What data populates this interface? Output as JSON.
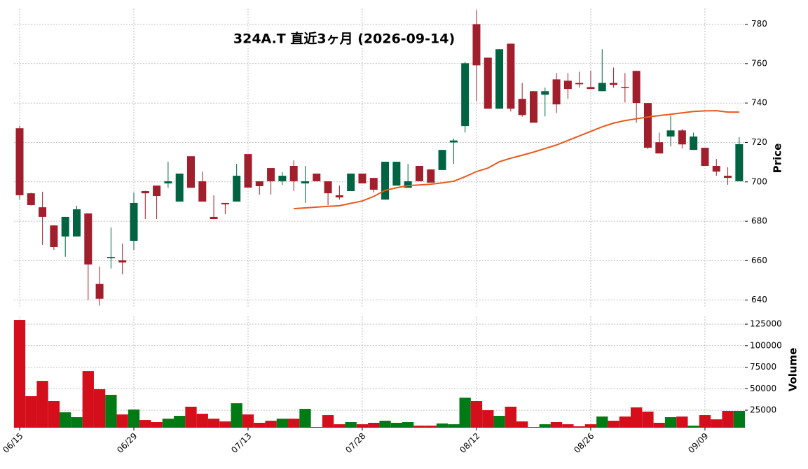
{
  "chart_data": {
    "type": "candlestick",
    "title": "324A.T  直近3ヶ月  (2026-09-14)",
    "categories": [
      "06/15",
      null,
      null,
      null,
      null,
      null,
      null,
      null,
      null,
      null,
      "06/29",
      null,
      null,
      null,
      null,
      null,
      null,
      null,
      null,
      null,
      "07/13",
      null,
      null,
      null,
      null,
      null,
      null,
      null,
      null,
      null,
      "07/28",
      null,
      null,
      null,
      null,
      null,
      null,
      null,
      null,
      null,
      "08/12",
      null,
      null,
      null,
      null,
      null,
      null,
      null,
      null,
      null,
      "08/26",
      null,
      null,
      null,
      null,
      null,
      null,
      null,
      null,
      null,
      "09/09",
      null,
      null,
      null
    ],
    "open": [
      727.2,
      694.2,
      687.1,
      677.9,
      672.3,
      672.3,
      684,
      648.2,
      661.3,
      660.2,
      670.1,
      695.3,
      698.1,
      699.2,
      690,
      713,
      700.3,
      682.2,
      689.3,
      690,
      714.1,
      700.3,
      707,
      700.3,
      708.1,
      699.2,
      704.2,
      700.3,
      693.2,
      695.3,
      704.2,
      702,
      691,
      698.1,
      697,
      708.1,
      706.3,
      706,
      720,
      728.3,
      780,
      763,
      737.1,
      770.1,
      742.1,
      746,
      744.2,
      752,
      751.3,
      750.2,
      748.1,
      746,
      750.2,
      748.1,
      756.3,
      740,
      720.1,
      723,
      726.1,
      716.2,
      717.3,
      708.1,
      703.1,
      700.3
    ],
    "high": [
      728.5,
      694.5,
      695,
      678,
      682.2,
      687.9,
      684,
      657,
      676.9,
      668.7,
      694.6,
      695.5,
      698.1,
      710.2,
      704.2,
      713,
      705.2,
      693.2,
      689.3,
      709.1,
      714.1,
      700.3,
      707,
      704.9,
      710.9,
      708.1,
      704.2,
      700.3,
      698.1,
      704.2,
      704.2,
      702,
      710.2,
      710.2,
      709.1,
      708.1,
      706.3,
      716.2,
      722,
      760.9,
      787.1,
      763,
      767.3,
      770.1,
      750.2,
      746,
      747.8,
      755.2,
      755.2,
      755.9,
      756.3,
      767.3,
      758,
      755.2,
      756.3,
      740,
      725,
      733.6,
      726.9,
      725,
      717.3,
      711.6,
      707.4,
      722.6
    ],
    "low": [
      691,
      688,
      668,
      665.5,
      662,
      672.3,
      640,
      637.2,
      656,
      653.1,
      665.5,
      681.1,
      681.1,
      697,
      690,
      697,
      690,
      681,
      683.6,
      690,
      697.1,
      693.5,
      693.5,
      698.5,
      695.3,
      689.3,
      700.3,
      688.2,
      691,
      695.3,
      699.2,
      694.6,
      691,
      698.1,
      697,
      700.3,
      699.6,
      706,
      709.1,
      725,
      741,
      737.1,
      737.1,
      735.7,
      733,
      730,
      733.2,
      735,
      742.1,
      747.8,
      747.1,
      746,
      747.8,
      740.3,
      730,
      716.6,
      714.4,
      718,
      716.9,
      716.2,
      708.1,
      703.1,
      698.5,
      700.3
    ],
    "close": [
      693.2,
      688.2,
      682.2,
      666.9,
      682.2,
      686.1,
      658.1,
      640.7,
      661.9,
      659.1,
      689.3,
      694.2,
      692.8,
      700.3,
      704.2,
      697,
      690,
      681.1,
      688.6,
      703.1,
      697.1,
      697.8,
      700.3,
      703.1,
      700.3,
      700.3,
      700.3,
      694.2,
      692.1,
      704.2,
      699.2,
      696,
      710.2,
      710.2,
      700.3,
      700.3,
      699.6,
      716.2,
      721,
      760.2,
      759.1,
      737.1,
      767.3,
      737.1,
      733.9,
      730,
      746,
      739.3,
      747.1,
      749.5,
      747.1,
      750.2,
      749.2,
      747.8,
      740,
      717.3,
      714.4,
      726.1,
      719,
      723,
      708.1,
      705.2,
      702,
      719.1
    ],
    "up_color": "#006442",
    "down_color": "#a11f2c",
    "ma": {
      "color": "#e8591c",
      "values": [
        null,
        null,
        null,
        null,
        null,
        null,
        null,
        null,
        null,
        null,
        null,
        null,
        null,
        null,
        null,
        null,
        null,
        null,
        null,
        null,
        null,
        null,
        null,
        null,
        686.4,
        686.8,
        687.2,
        687.6,
        687.9,
        689.1,
        690.3,
        692.6,
        695.7,
        697.0,
        698.1,
        698.4,
        698.8,
        699.5,
        700.3,
        702.6,
        705.2,
        707.0,
        710.2,
        712.0,
        713.5,
        715.1,
        716.9,
        718.7,
        721.0,
        723.3,
        725.6,
        727.9,
        729.8,
        731.1,
        732.0,
        732.9,
        733.6,
        734.3,
        735.0,
        735.7,
        736.0,
        736.1,
        735.4,
        735.4
      ]
    },
    "ylabel": "Price",
    "ylim": [
      636,
      788
    ],
    "yticks": [
      640,
      660,
      680,
      700,
      720,
      740,
      760,
      780
    ],
    "grid": true,
    "volume": {
      "ylabel": "Volume",
      "up_color": "#007a14",
      "down_color": "#d40f1b",
      "ylim": [
        4700,
        134000
      ],
      "yticks": [
        25000,
        50000,
        75000,
        100000,
        125000
      ],
      "values": [
        129900,
        41300,
        59100,
        35600,
        22600,
        16900,
        70500,
        49400,
        42900,
        20100,
        25800,
        13600,
        11200,
        15200,
        18500,
        29100,
        20900,
        15200,
        12000,
        33100,
        20100,
        10400,
        12800,
        15200,
        15200,
        26600,
        5500,
        19300,
        8700,
        11200,
        8700,
        10400,
        12800,
        10400,
        11200,
        7100,
        7100,
        9600,
        8700,
        39600,
        35600,
        25000,
        18500,
        29100,
        12000,
        5500,
        8700,
        11200,
        8700,
        6300,
        8700,
        17700,
        12800,
        17700,
        28300,
        23400,
        10400,
        16900,
        17700,
        7100,
        19300,
        14400,
        24200,
        24200
      ]
    }
  }
}
